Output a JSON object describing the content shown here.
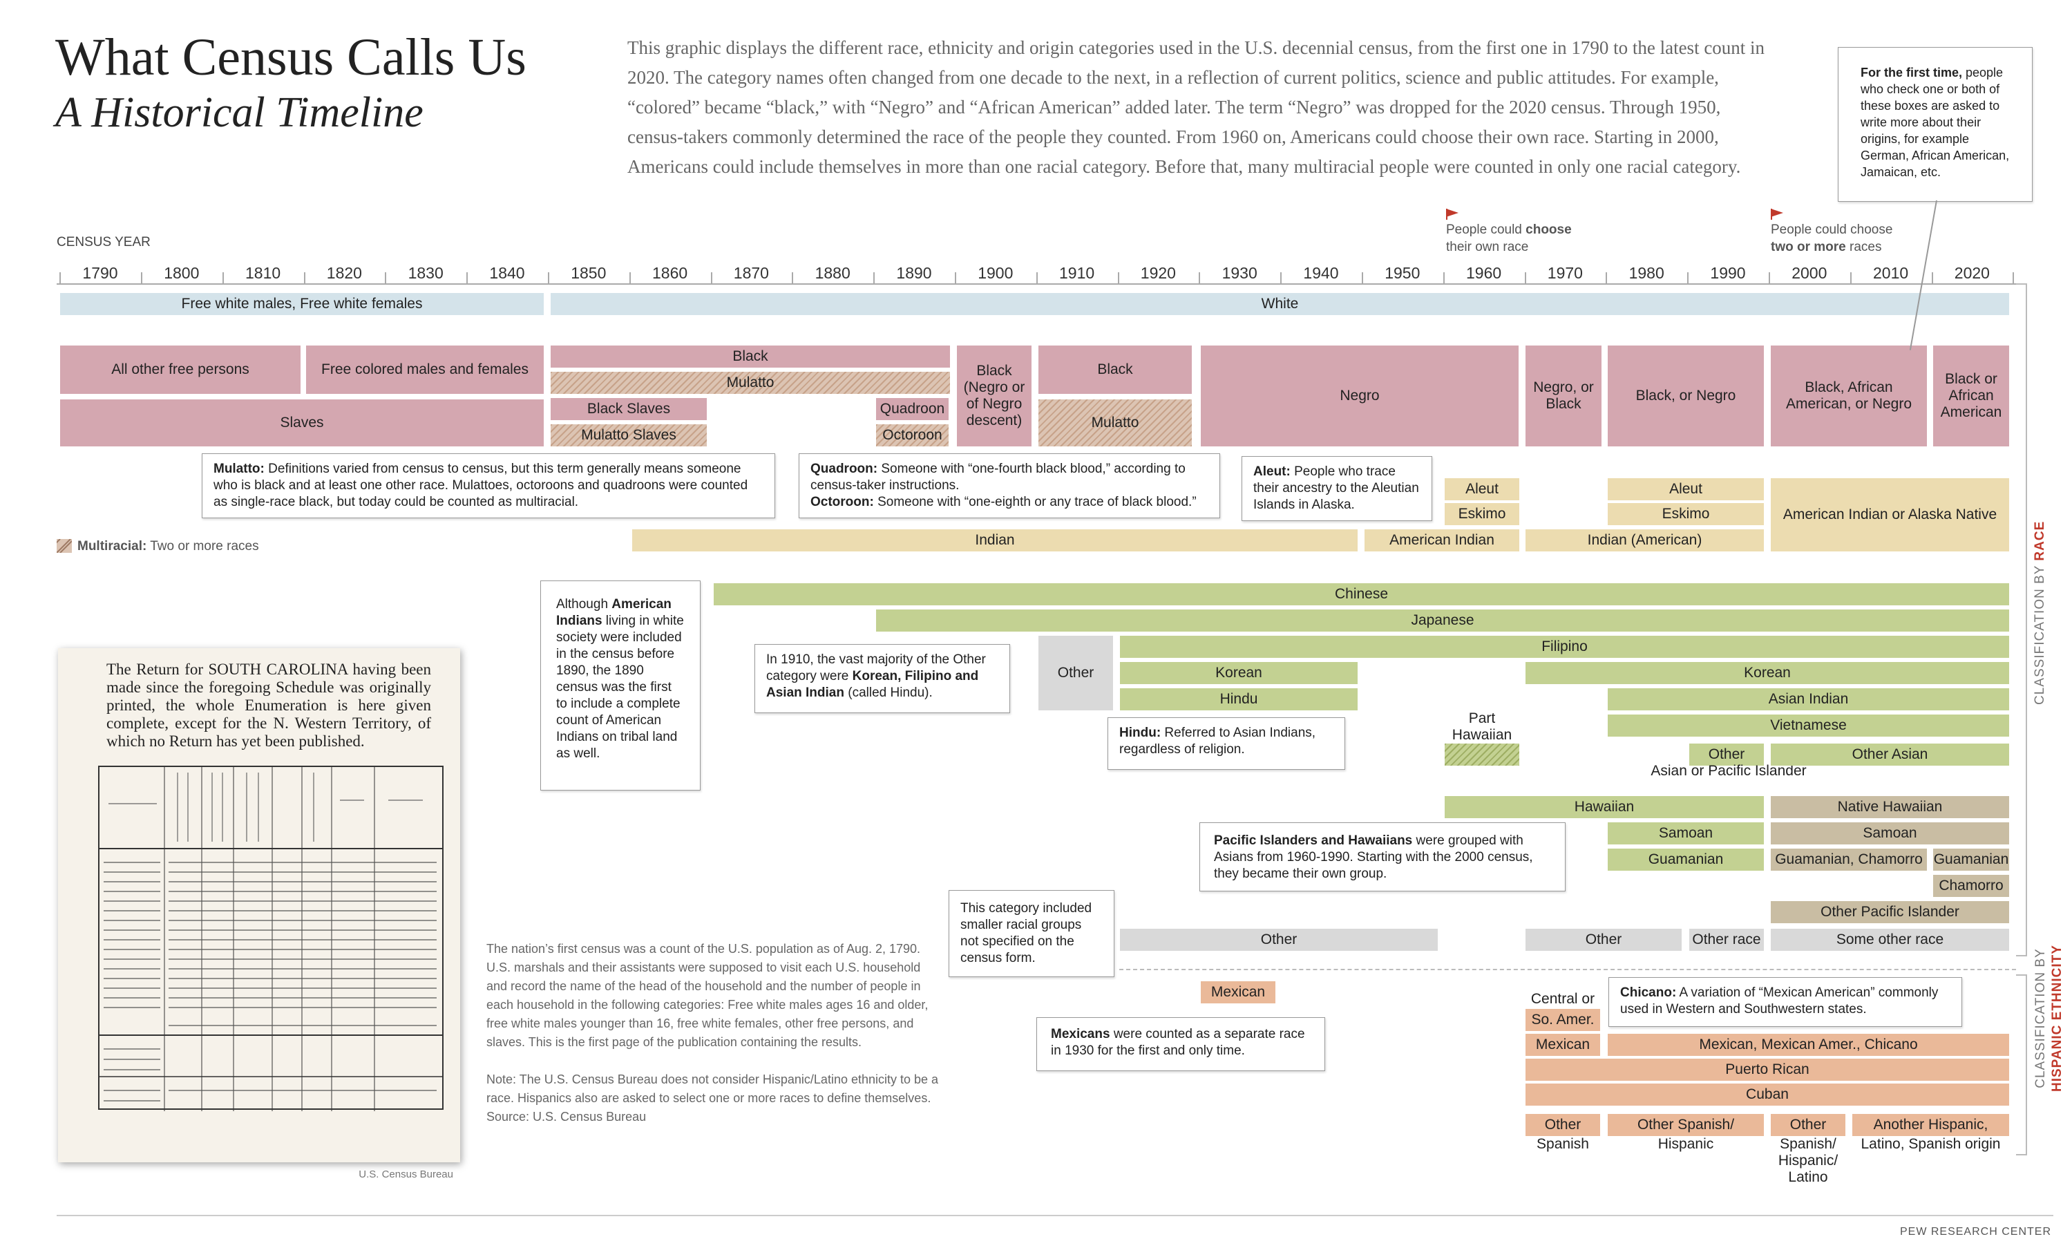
{
  "header": {
    "title": "What Census Calls Us",
    "subtitle": "A Historical Timeline",
    "intro": "This graphic displays the different race, ethnicity and origin categories used in the U.S. decennial census, from the first one in 1790 to the latest count in 2020. The category names often changed from one decade to the next, in a reflection of current politics, science and public attitudes. For example, “colored” became “black,” with “Negro” and “African American” added later. The term “Negro” was dropped for the 2020 census. Through 1950, census-takers commonly determined the race of the people they counted. From 1960 on, Americans could choose their own race. Starting in 2000, Americans could include themselves in more than one racial category. Before that, many multiracial people were counted in only one racial category."
  },
  "axis": {
    "label": "CENSUS YEAR",
    "years": [
      "1790",
      "1800",
      "1810",
      "1820",
      "1830",
      "1840",
      "1850",
      "1860",
      "1870",
      "1880",
      "1890",
      "1900",
      "1910",
      "1920",
      "1930",
      "1940",
      "1950",
      "1960",
      "1970",
      "1980",
      "1990",
      "2000",
      "2010",
      "2020"
    ]
  },
  "markers": {
    "choose_own": {
      "pre": "People could ",
      "bold": "choose",
      "post": "their own race"
    },
    "two_or_more": {
      "pre": "People could choose",
      "bold": "two or more",
      "post": " races"
    }
  },
  "legend": {
    "multiracial_bold": "Multiracial:",
    "multiracial_text": " Two or more races"
  },
  "side_labels": {
    "race_pre": "CLASSIFICATION BY ",
    "race_bold": "RACE",
    "hisp_pre": "CLASSIFICATION BY",
    "hisp_bold": "HISPANIC ETHNICITY"
  },
  "bars": {
    "free_white": "Free white males, Free white females",
    "white": "White",
    "all_other_free": "All other free persons",
    "free_colored": "Free colored males and females",
    "slaves": "Slaves",
    "black_1850": "Black",
    "mulatto_1850": "Mulatto",
    "black_slaves": "Black Slaves",
    "mulatto_slaves": "Mulatto  Slaves",
    "quadroon": "Quadroon",
    "octoroon": "Octoroon",
    "black_1900": "Black (Negro or of Negro descent)",
    "black_1910": "Black",
    "mulatto_1910": "Mulatto",
    "negro": "Negro",
    "negro_or_black": "Negro, or Black",
    "black_or_negro": "Black, or Negro",
    "black_aa_negro": "Black, African American, or Negro",
    "black_aa": "Black or African American",
    "aleut_1960": "Aleut",
    "eskimo_1960": "Eskimo",
    "aleut_1980": "Aleut",
    "eskimo_1980": "Eskimo",
    "am_indian_alaska": "American Indian or Alaska Native",
    "indian": "Indian",
    "american_indian": "American Indian",
    "indian_american": "Indian (American)",
    "chinese": "Chinese",
    "japanese": "Japanese",
    "filipino": "Filipino",
    "other_1910": "Other",
    "korean_1910": "Korean",
    "hindu": "Hindu",
    "korean_1970": "Korean",
    "asian_indian": "Asian Indian",
    "vietnamese": "Vietnamese",
    "part_hawaiian": "Part Hawaiian",
    "other_api": "Other",
    "other_api_label": "Asian or Pacific Islander",
    "other_asian": "Other Asian",
    "hawaiian": "Hawaiian",
    "native_hawaiian": "Native Hawaiian",
    "samoan_1980": "Samoan",
    "samoan_2000": "Samoan",
    "guamanian_1980": "Guamanian",
    "guamanian_chamorro": "Guamanian, Chamorro",
    "guamanian_2010": "Guamanian",
    "chamorro": "Chamorro",
    "other_pacific": "Other Pacific Islander",
    "other_1950": "Other",
    "other_1970": "Other",
    "other_race": "Other race",
    "some_other_race": "Some other race",
    "mexican_1930": "Mexican",
    "central_or": "Central or",
    "so_amer": "So. Amer.",
    "mexican_1970": "Mexican",
    "mexican_chicano": "Mexican, Mexican Amer., Chicano",
    "puerto_rican": "Puerto Rican",
    "cuban": "Cuban",
    "other_1": "Other",
    "spanish_1": "Spanish",
    "other_spanish_hispanic_a": "Other Spanish/",
    "other_spanish_hispanic_b": "Hispanic",
    "other_2000_a": "Other",
    "other_2000_b": "Spanish/ Hispanic/ Latino",
    "another_hispanic_a": "Another Hispanic,",
    "another_hispanic_b": "Latino, Spanish origin"
  },
  "notes": {
    "first_time_bold": "For the first time,",
    "first_time": " people who check one or both of these boxes are asked to write more about their origins, for example German, African American, Jamaican, etc.",
    "mulatto_bold": "Mulatto:",
    "mulatto": " Definitions varied from census to census, but this term generally means someone who is black and at least one other race. Mulattoes, octoroons and quadroons were counted as single-race black, but today could be counted as multiracial.",
    "quadroon_bold": "Quadroon:",
    "quadroon": " Someone with “one-fourth black blood,” according to census-taker instructions.",
    "octoroon_bold": "Octoroon:",
    "octoroon": " Someone with “one-eighth or any trace of black blood.”",
    "aleut_bold": "Aleut:",
    "aleut": " People who trace their ancestry to the Aleutian Islands in Alaska.",
    "indians_pre": "Although ",
    "indians_bold": "American Indians",
    "indians_post": " living in white society were included in the census before 1890, the 1890 census was the first to include a complete count of American Indians on tribal land as well.",
    "other1910_pre": "In 1910, the vast majority of the Other category were ",
    "other1910_bold": "Korean, Filipino and Asian Indian",
    "other1910_post": " (called Hindu).",
    "hindu_bold": "Hindu:",
    "hindu": " Referred to Asian Indians, regardless of religion.",
    "pacific_bold": "Pacific Islanders and Hawaiians",
    "pacific": " were grouped with Asians from 1960-1990. Starting with the 2000 census, they became their own group.",
    "small_groups": "This category included smaller racial groups not specified on the census form.",
    "mexicans_bold": "Mexicans",
    "mexicans": " were counted as a separate race in 1930 for the first and only time.",
    "chicano_bold": "Chicano:",
    "chicano": " A variation of “Mexican American” commonly used in Western and Southwestern states."
  },
  "doc": {
    "heading": "The Return for SOUTH CAROLINA having been made since the foregoing Schedule was originally printed, the whole Enumeration is here given complete, except for the N. Western Territory, of which no Return has yet been published.",
    "credit": "U.S. Census Bureau"
  },
  "footnote": {
    "p1": "The nation’s first census was a count of the U.S. population as of Aug. 2, 1790. U.S. marshals and their assistants were supposed to visit each U.S. household and record the name of the head of the household and the number of people in each household in the following categories: Free white males ages 16 and older, free white males younger than 16, free white females, other free persons, and slaves. This is the first page of the publication containing the results.",
    "p2": "Note: The U.S. Census Bureau does not consider Hispanic/Latino ethnicity to be a race. Hispanics also are asked to select one or more races to define themselves.",
    "source": "Source: U.S. Census Bureau"
  },
  "footer": {
    "brand": "PEW RESEARCH CENTER"
  },
  "colors": {
    "race": "#d4a7b0",
    "indian": "#ecdcb0",
    "asian": "#c3d192",
    "pacific": "#c9bda3",
    "other": "#d9d9d9",
    "hispanic": "#eab999",
    "white": "#d4e3ea",
    "accent": "#c0392b"
  }
}
